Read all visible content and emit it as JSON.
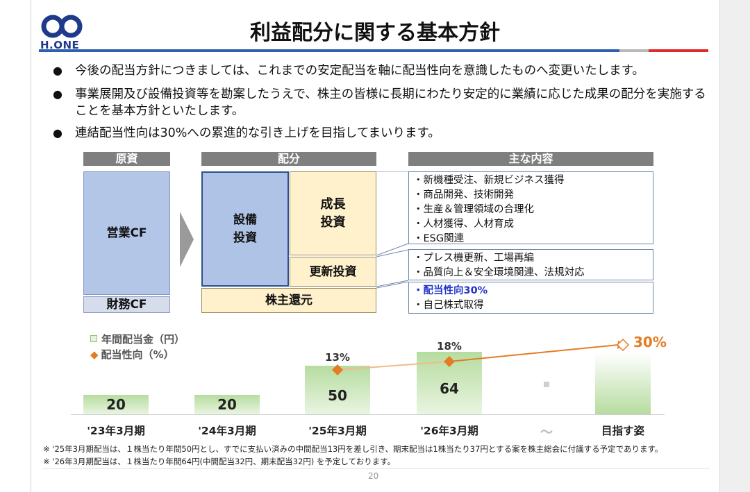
{
  "logo": {
    "text": "H.ONE"
  },
  "title": "利益配分に関する基本方針",
  "bullets": [
    "今後の配当方針につきましては、これまでの安定配当を軸に配当性向を意識したものへ変更いたします。",
    "事業展開及び設備投資等を勘案したうえで、株主の皆様に長期にわたり安定的に業績に応じた成果の配分を実施することを基本方針といたします。",
    "連結配当性向は30%への累進的な引き上げを目指してまいります。"
  ],
  "diagram": {
    "headers": {
      "source": "原資",
      "allocation": "配分",
      "content": "主な内容"
    },
    "source": {
      "operating_cf": "営業CF",
      "financial_cf": "財務CF"
    },
    "allocation": {
      "capex_line1": "設備",
      "capex_line2": "投資",
      "growth_line1": "成長",
      "growth_line2": "投資",
      "renewal": "更新投資",
      "shareholder": "株主還元"
    },
    "growth_items": [
      "・新機種受注、新規ビジネス獲得",
      "・商品開発、技術開発",
      "・生産＆管理領域の合理化",
      "・人材獲得、人材育成",
      "・ESG関連"
    ],
    "renewal_items": [
      "・プレス機更新、工場再編",
      "・品質向上＆安全環境関連、法規対応"
    ],
    "shareholder_items": [
      "・配当性向30%",
      "・自己株式取得"
    ]
  },
  "chart_data": {
    "type": "bar",
    "categories": [
      "'23年3月期",
      "'24年3月期",
      "'25年3月期",
      "'26年3月期",
      "〜",
      "目指す姿"
    ],
    "series": [
      {
        "name": "年間配当金（円）",
        "values": [
          20,
          20,
          50,
          64,
          null,
          null
        ]
      },
      {
        "name": "配当性向（%）",
        "values": [
          null,
          null,
          13,
          18,
          null,
          30
        ]
      }
    ],
    "value_labels": [
      "20",
      "20",
      "50",
      "64"
    ],
    "pct_labels": [
      "13%",
      "18%",
      "30%"
    ],
    "legend_labels": [
      "年間配当金（円）",
      "配当性向（%）"
    ],
    "colors": {
      "bar": "#b6dc9f",
      "line": "#e57c23"
    }
  },
  "notes": [
    "※ '25年3月期配当は、１株当たり年間50円とし、すでに支払い済みの中間配当13円を差し引き、期末配当は1株当たり37円とする案を株主総会に付議する予定であります。",
    "※ '26年3月期配当は、１株当たり年間64円(中間配当32円、期末配当32円) を予定しております。"
  ],
  "page_number": "20"
}
